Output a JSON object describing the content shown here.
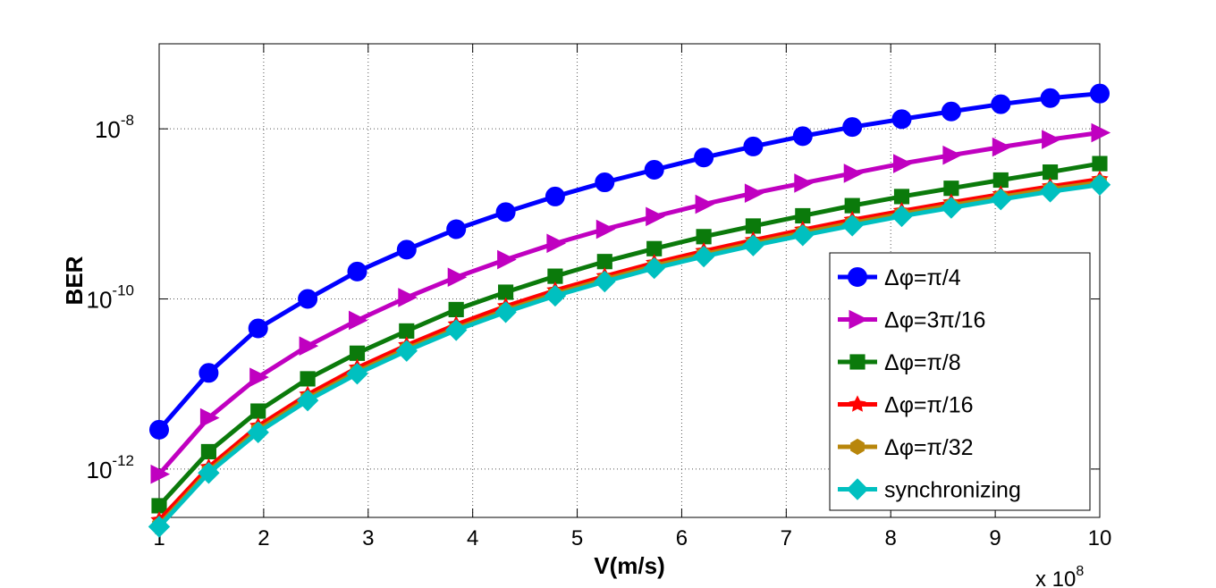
{
  "chart_data": {
    "type": "line",
    "xlabel": "V(m/s)",
    "ylabel": "BER",
    "x_multiplier": "x 10",
    "x_multiplier_exp": "8",
    "xlim": [
      1,
      10
    ],
    "ylim": [
      2.7e-13,
      1e-07
    ],
    "yscale": "log",
    "grid": "dotted",
    "legend_position": "lower-right",
    "x_ticks": [
      1,
      2,
      3,
      4,
      5,
      6,
      7,
      8,
      9,
      10
    ],
    "y_ticks": [
      {
        "value": 1e-12,
        "base": "10",
        "exp": "-12"
      },
      {
        "value": 1e-10,
        "base": "10",
        "exp": "-10"
      },
      {
        "value": 1e-08,
        "base": "10",
        "exp": "-8"
      }
    ],
    "x": [
      1,
      1.474,
      1.947,
      2.421,
      2.895,
      3.368,
      3.842,
      4.316,
      4.789,
      5.263,
      5.737,
      6.211,
      6.684,
      7.158,
      7.632,
      8.105,
      8.579,
      9.053,
      9.526,
      10
    ],
    "series": [
      {
        "name": "Δφ=π/4",
        "color": "#0000ff",
        "marker": "circle",
        "values": [
          2.9e-12,
          1.35e-11,
          4.5e-11,
          1e-10,
          2.1e-10,
          3.8e-10,
          6.6e-10,
          1.05e-09,
          1.6e-09,
          2.35e-09,
          3.3e-09,
          4.6e-09,
          6.2e-09,
          8.2e-09,
          1.05e-08,
          1.3e-08,
          1.6e-08,
          1.95e-08,
          2.3e-08,
          2.6e-08
        ]
      },
      {
        "name": "Δφ=3π/16",
        "color": "#c000c0",
        "marker": "triangle-right",
        "values": [
          8.7e-13,
          4e-12,
          1.2e-11,
          2.8e-11,
          5.6e-11,
          1.04e-10,
          1.8e-10,
          2.9e-10,
          4.5e-10,
          6.6e-10,
          9.3e-10,
          1.3e-09,
          1.75e-09,
          2.3e-09,
          3e-09,
          3.9e-09,
          4.9e-09,
          6.1e-09,
          7.5e-09,
          9e-09
        ]
      },
      {
        "name": "Δφ=π/8",
        "color": "#0b7a0b",
        "marker": "square",
        "values": [
          3.7e-13,
          1.6e-12,
          4.8e-12,
          1.15e-11,
          2.3e-11,
          4.2e-11,
          7.5e-11,
          1.2e-10,
          1.85e-10,
          2.75e-10,
          3.9e-10,
          5.4e-10,
          7.2e-10,
          9.5e-10,
          1.25e-09,
          1.6e-09,
          2e-09,
          2.5e-09,
          3.1e-09,
          3.9e-09
        ]
      },
      {
        "name": "Δφ=π/16",
        "color": "#ff0000",
        "marker": "star",
        "values": [
          2.5e-13,
          1.05e-12,
          3.2e-12,
          7.5e-12,
          1.55e-11,
          2.85e-11,
          5e-11,
          8.2e-11,
          1.26e-10,
          1.85e-10,
          2.65e-10,
          3.65e-10,
          4.9e-10,
          6.5e-10,
          8.5e-10,
          1.08e-09,
          1.36e-09,
          1.7e-09,
          2.1e-09,
          2.55e-09
        ]
      },
      {
        "name": "Δφ=π/32",
        "color": "#b8860b",
        "marker": "hexagon",
        "values": [
          2.2e-13,
          9.5e-13,
          2.9e-12,
          6.8e-12,
          1.4e-11,
          2.6e-11,
          4.5e-11,
          7.4e-11,
          1.15e-10,
          1.7e-10,
          2.45e-10,
          3.35e-10,
          4.5e-10,
          6e-10,
          7.8e-10,
          1e-09,
          1.26e-09,
          1.58e-09,
          1.95e-09,
          2.35e-09
        ]
      },
      {
        "name": "synchronizing",
        "color": "#00c0c0",
        "marker": "diamond",
        "values": [
          2.1e-13,
          9e-13,
          2.7e-12,
          6.4e-12,
          1.32e-11,
          2.45e-11,
          4.3e-11,
          7e-11,
          1.09e-10,
          1.6e-10,
          2.3e-10,
          3.15e-10,
          4.25e-10,
          5.6e-10,
          7.3e-10,
          9.4e-10,
          1.18e-09,
          1.48e-09,
          1.83e-09,
          2.2e-09
        ]
      }
    ]
  }
}
